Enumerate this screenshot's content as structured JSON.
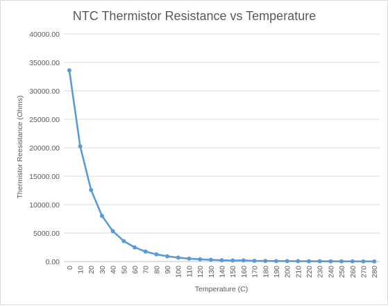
{
  "chart_data": {
    "type": "line",
    "title": "NTC Thermistor Resistance vs Temperature",
    "xlabel": "Temperature  (C)",
    "ylabel": "Thermistor Reesistance (Ohms)",
    "ylim": [
      0,
      40000
    ],
    "ytick_labels": [
      "0.00",
      "5000.00",
      "10000.00",
      "15000.00",
      "20000.00",
      "25000.00",
      "30000.00",
      "35000.00",
      "40000.00"
    ],
    "grid": true,
    "legend": "none",
    "categories": [
      "0",
      "10",
      "20",
      "30",
      "40",
      "50",
      "60",
      "70",
      "80",
      "90",
      "100",
      "110",
      "120",
      "130",
      "140",
      "150",
      "160",
      "170",
      "180",
      "190",
      "200",
      "210",
      "220",
      "230",
      "240",
      "250",
      "260",
      "270",
      "280"
    ],
    "series": [
      {
        "values": [
          33620,
          20250,
          12570,
          8030,
          5330,
          3600,
          2490,
          1750,
          1260,
          920,
          680,
          510,
          390,
          300,
          230,
          180,
          200,
          120,
          100,
          80,
          70,
          60,
          50,
          40,
          35,
          30,
          25,
          20,
          18
        ],
        "color": "#5b9bd5"
      }
    ]
  }
}
